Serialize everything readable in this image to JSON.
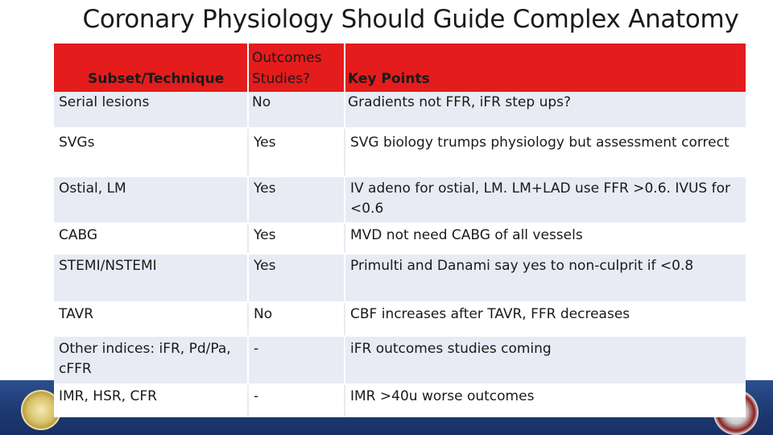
{
  "title": "Coronary Physiology Should Guide Complex Anatomy",
  "table": {
    "headers": {
      "subset": "Subset/Technique",
      "outcomes_line1": "Outcomes",
      "outcomes_line2": "Studies?",
      "key_points": "Key Points"
    },
    "first_row": {
      "subset": "Serial  lesions",
      "outcomes": "No",
      "key_points": "Gradients not FFR,  iFR step ups?"
    },
    "rows": [
      {
        "subset": "SVGs",
        "outcomes": "Yes",
        "key_points": "SVG biology trumps physiology but assessment correct"
      },
      {
        "subset": "Ostial, LM",
        "outcomes": "Yes",
        "key_points": "IV adeno for ostial, LM.  LM+LAD use FFR >0.6.   IVUS for <0.6"
      },
      {
        "subset": "CABG",
        "outcomes": "Yes",
        "key_points": "MVD not need CABG of all vessels"
      },
      {
        "subset": "STEMI/NSTEMI",
        "outcomes": "Yes",
        "key_points": "Primulti and Danami say yes to non-culprit if <0.8"
      },
      {
        "subset": "TAVR",
        "outcomes": "No",
        "key_points": "CBF increases after TAVR, FFR decreases"
      },
      {
        "subset": "Other indices: iFR, Pd/Pa, cFFR",
        "outcomes": "-",
        "key_points": "iFR outcomes studies coming"
      },
      {
        "subset": "IMR, HSR, CFR",
        "outcomes": "-",
        "key_points": "IMR >40u worse outcomes"
      }
    ]
  },
  "colors": {
    "header": "#e41c1c",
    "row_alt": "#e9ebf4",
    "footer": "#1d3a73"
  }
}
